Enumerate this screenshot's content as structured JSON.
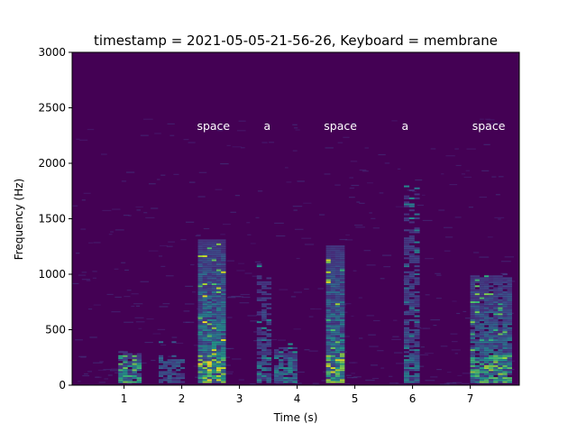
{
  "chart_data": {
    "type": "heatmap",
    "title": "timestamp = 2021-05-05-21-56-26, Keyboard = membrane",
    "xlabel": "Time (s)",
    "ylabel": "Frequency (Hz)",
    "xlim": [
      0.1,
      7.85
    ],
    "ylim": [
      0,
      3000
    ],
    "xticks": [
      1,
      2,
      3,
      4,
      5,
      6,
      7
    ],
    "yticks": [
      0,
      500,
      1000,
      1500,
      2000,
      2500,
      3000
    ],
    "colormap": "viridis",
    "background_color": "#440154",
    "grid": false,
    "annotations": [
      {
        "text": "space",
        "x": 2.55,
        "y": 2300
      },
      {
        "text": "a",
        "x": 3.48,
        "y": 2300
      },
      {
        "text": "space",
        "x": 4.75,
        "y": 2300
      },
      {
        "text": "a",
        "x": 5.87,
        "y": 2300
      },
      {
        "text": "space",
        "x": 7.32,
        "y": 2300
      }
    ],
    "keystroke_events": [
      {
        "label": "space",
        "t_start": 2.28,
        "t_end": 2.76,
        "max_freq": 1300,
        "peak_intensity": 1.0
      },
      {
        "label": "a",
        "t_start": 3.3,
        "t_end": 3.55,
        "max_freq": 1200,
        "peak_intensity": 0.55
      },
      {
        "label": "space",
        "t_start": 4.5,
        "t_end": 4.82,
        "max_freq": 1250,
        "peak_intensity": 0.95
      },
      {
        "label": "a",
        "t_start": 5.85,
        "t_end": 6.12,
        "max_freq": 2000,
        "peak_intensity": 0.5
      },
      {
        "label": "space",
        "t_start": 7.0,
        "t_end": 7.72,
        "max_freq": 1000,
        "peak_intensity": 0.85
      }
    ],
    "noise_events": [
      {
        "t_start": 0.9,
        "t_end": 1.3,
        "max_freq": 300,
        "peak_intensity": 0.8
      },
      {
        "t_start": 1.6,
        "t_end": 2.05,
        "max_freq": 400,
        "peak_intensity": 0.35
      },
      {
        "t_start": 3.6,
        "t_end": 4.0,
        "max_freq": 400,
        "peak_intensity": 0.55
      }
    ]
  }
}
